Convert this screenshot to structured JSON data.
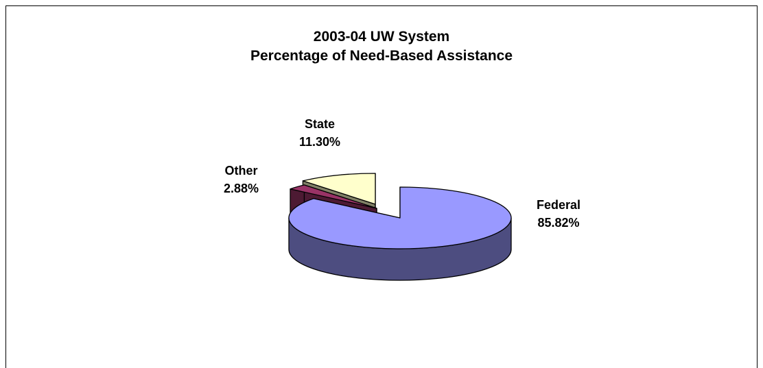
{
  "chart_data": {
    "type": "pie",
    "style": "3d-exploded",
    "title": "2003-04 UW System",
    "subtitle": "Percentage of Need-Based Assistance",
    "slices": [
      {
        "name": "Federal",
        "value": 85.82,
        "label": "85.82%",
        "color": "#9999ff",
        "side_color": "#4d4d80"
      },
      {
        "name": "Other",
        "value": 2.88,
        "label": "2.88%",
        "color": "#993366",
        "side_color": "#4d1a33"
      },
      {
        "name": "State",
        "value": 11.3,
        "label": "11.30%",
        "color": "#ffffcc",
        "side_color": "#808066"
      }
    ],
    "legend": "none"
  }
}
